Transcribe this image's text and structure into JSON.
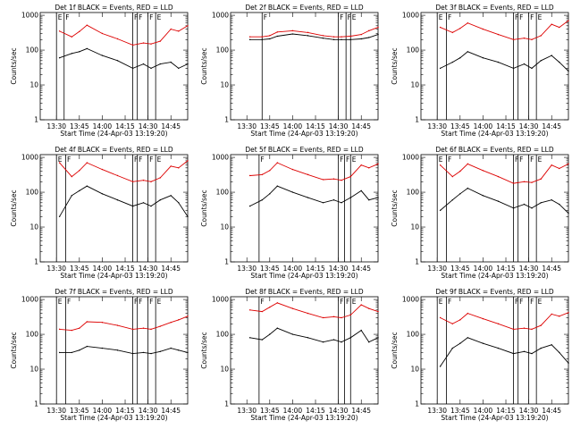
{
  "colors": {
    "events": "#000000",
    "lld": "#dd0000",
    "axis": "#000000",
    "background": "#ffffff"
  },
  "shared": {
    "xlabel": "Start Time (24-Apr-03 13:19:20)",
    "ylabel": "Counts/sec",
    "y_scale": "log",
    "ylim": [
      1,
      1200
    ],
    "xlim": [
      "13:19:20",
      "14:56:00"
    ],
    "x_ticks": [
      "13:30",
      "13:45",
      "14:00",
      "14:15",
      "14:30",
      "14:45"
    ],
    "y_ticks": [
      "1",
      "10",
      "100",
      "1000"
    ],
    "flag_labels": [
      "E",
      "F"
    ]
  },
  "chart_data": [
    {
      "type": "line",
      "title": "Det 1f BLACK = Events, RED = LLD",
      "xlabel": "Start Time (24-Apr-03 13:19:20)",
      "ylabel": "Counts/sec",
      "y_scale": "log",
      "ylim": [
        1,
        1200
      ],
      "x": [
        "13:32",
        "13:40",
        "13:45",
        "13:50",
        "14:00",
        "14:10",
        "14:20",
        "14:27",
        "14:32",
        "14:38",
        "14:45",
        "14:50",
        "14:56"
      ],
      "series": [
        {
          "name": "RED = LLD",
          "values": [
            350,
            240,
            340,
            520,
            300,
            210,
            140,
            160,
            150,
            180,
            400,
            350,
            500
          ]
        },
        {
          "name": "BLACK = Events",
          "values": [
            60,
            80,
            90,
            110,
            70,
            50,
            30,
            40,
            30,
            40,
            45,
            30,
            40
          ]
        }
      ],
      "flags": [
        {
          "time": "13:30",
          "label": "E"
        },
        {
          "time": "13:35",
          "label": "F"
        },
        {
          "time": "14:20",
          "label": "F"
        },
        {
          "time": "14:23",
          "label": "F"
        },
        {
          "time": "14:30",
          "label": "F"
        },
        {
          "time": "14:35",
          "label": "E"
        }
      ]
    },
    {
      "type": "line",
      "title": "Det 2f BLACK = Events, RED = LLD",
      "xlabel": "Start Time (24-Apr-03 13:19:20)",
      "ylabel": "Counts/sec",
      "y_scale": "log",
      "ylim": [
        1,
        1200
      ],
      "x": [
        "13:32",
        "13:40",
        "13:45",
        "13:50",
        "14:00",
        "14:10",
        "14:20",
        "14:27",
        "14:32",
        "14:38",
        "14:45",
        "14:50",
        "14:56"
      ],
      "series": [
        {
          "name": "RED = LLD",
          "values": [
            240,
            240,
            260,
            330,
            360,
            320,
            260,
            240,
            240,
            250,
            280,
            360,
            450
          ]
        },
        {
          "name": "BLACK = Events",
          "values": [
            200,
            200,
            210,
            250,
            290,
            260,
            220,
            200,
            200,
            200,
            210,
            230,
            280
          ]
        }
      ],
      "flags": [
        {
          "time": "13:40",
          "label": "F"
        },
        {
          "time": "14:30",
          "label": "F"
        },
        {
          "time": "14:35",
          "label": "F"
        },
        {
          "time": "14:38",
          "label": "E"
        }
      ]
    },
    {
      "type": "line",
      "title": "Det 3f BLACK = Events, RED = LLD",
      "xlabel": "Start Time (24-Apr-03 13:19:20)",
      "ylabel": "Counts/sec",
      "y_scale": "log",
      "ylim": [
        1,
        1200
      ],
      "x": [
        "13:32",
        "13:40",
        "13:45",
        "13:50",
        "14:00",
        "14:10",
        "14:20",
        "14:27",
        "14:32",
        "14:38",
        "14:45",
        "14:50",
        "14:56"
      ],
      "series": [
        {
          "name": "RED = LLD",
          "values": [
            450,
            320,
            420,
            600,
            400,
            280,
            200,
            220,
            200,
            260,
            550,
            450,
            700
          ]
        },
        {
          "name": "BLACK = Events",
          "values": [
            30,
            45,
            60,
            90,
            60,
            45,
            30,
            40,
            30,
            50,
            70,
            45,
            25
          ]
        }
      ],
      "flags": [
        {
          "time": "13:30",
          "label": "E"
        },
        {
          "time": "13:36",
          "label": "F"
        },
        {
          "time": "14:20",
          "label": "F"
        },
        {
          "time": "14:23",
          "label": "F"
        },
        {
          "time": "14:30",
          "label": "F"
        },
        {
          "time": "14:35",
          "label": "E"
        }
      ]
    },
    {
      "type": "line",
      "title": "Det 4f BLACK = Events, RED = LLD",
      "xlabel": "Start Time (24-Apr-03 13:19:20)",
      "ylabel": "Counts/sec",
      "y_scale": "log",
      "ylim": [
        1,
        1200
      ],
      "x": [
        "13:32",
        "13:40",
        "13:45",
        "13:50",
        "14:00",
        "14:10",
        "14:20",
        "14:27",
        "14:32",
        "14:38",
        "14:45",
        "14:50",
        "14:56"
      ],
      "series": [
        {
          "name": "RED = LLD",
          "values": [
            700,
            280,
            420,
            700,
            450,
            300,
            200,
            220,
            200,
            260,
            560,
            500,
            800
          ]
        },
        {
          "name": "BLACK = Events",
          "values": [
            20,
            80,
            110,
            150,
            90,
            60,
            40,
            50,
            40,
            60,
            80,
            50,
            20
          ]
        }
      ],
      "flags": [
        {
          "time": "13:30",
          "label": "E"
        },
        {
          "time": "13:36",
          "label": "F"
        },
        {
          "time": "14:20",
          "label": "F"
        },
        {
          "time": "14:23",
          "label": "F"
        },
        {
          "time": "14:30",
          "label": "F"
        },
        {
          "time": "14:35",
          "label": "E"
        }
      ]
    },
    {
      "type": "line",
      "title": "Det 5f BLACK = Events, RED = LLD",
      "xlabel": "Start Time (24-Apr-03 13:19:20)",
      "ylabel": "Counts/sec",
      "y_scale": "log",
      "ylim": [
        1,
        1200
      ],
      "x": [
        "13:32",
        "13:40",
        "13:45",
        "13:50",
        "14:00",
        "14:10",
        "14:20",
        "14:27",
        "14:32",
        "14:38",
        "14:45",
        "14:50",
        "14:56"
      ],
      "series": [
        {
          "name": "RED = LLD",
          "values": [
            300,
            320,
            420,
            700,
            450,
            320,
            230,
            240,
            220,
            280,
            600,
            500,
            650
          ]
        },
        {
          "name": "BLACK = Events",
          "values": [
            40,
            60,
            90,
            150,
            100,
            70,
            50,
            60,
            50,
            70,
            110,
            60,
            70
          ]
        }
      ],
      "flags": [
        {
          "time": "13:38",
          "label": "F"
        },
        {
          "time": "14:30",
          "label": "F"
        },
        {
          "time": "14:34",
          "label": "F"
        },
        {
          "time": "14:38",
          "label": "E"
        }
      ]
    },
    {
      "type": "line",
      "title": "Det 6f BLACK = Events, RED = LLD",
      "xlabel": "Start Time (24-Apr-03 13:19:20)",
      "ylabel": "Counts/sec",
      "y_scale": "log",
      "ylim": [
        1,
        1200
      ],
      "x": [
        "13:32",
        "13:40",
        "13:45",
        "13:50",
        "14:00",
        "14:10",
        "14:20",
        "14:27",
        "14:32",
        "14:38",
        "14:45",
        "14:50",
        "14:56"
      ],
      "series": [
        {
          "name": "RED = LLD",
          "values": [
            600,
            280,
            400,
            650,
            420,
            280,
            180,
            200,
            190,
            240,
            600,
            480,
            650
          ]
        },
        {
          "name": "BLACK = Events",
          "values": [
            30,
            60,
            90,
            130,
            80,
            55,
            35,
            45,
            35,
            50,
            60,
            45,
            25
          ]
        }
      ],
      "flags": [
        {
          "time": "13:30",
          "label": "E"
        },
        {
          "time": "13:36",
          "label": "F"
        },
        {
          "time": "14:20",
          "label": "F"
        },
        {
          "time": "14:23",
          "label": "F"
        },
        {
          "time": "14:30",
          "label": "F"
        },
        {
          "time": "14:35",
          "label": "E"
        }
      ]
    },
    {
      "type": "line",
      "title": "Det 7f BLACK = Events, RED = LLD",
      "xlabel": "Start Time (24-Apr-03 13:19:20)",
      "ylabel": "Counts/sec",
      "y_scale": "log",
      "ylim": [
        1,
        1200
      ],
      "x": [
        "13:32",
        "13:40",
        "13:45",
        "13:50",
        "14:00",
        "14:10",
        "14:20",
        "14:27",
        "14:32",
        "14:38",
        "14:45",
        "14:50",
        "14:56"
      ],
      "series": [
        {
          "name": "RED = LLD",
          "values": [
            140,
            130,
            150,
            230,
            220,
            180,
            140,
            150,
            140,
            170,
            220,
            260,
            330
          ]
        },
        {
          "name": "BLACK = Events",
          "values": [
            30,
            30,
            35,
            45,
            40,
            35,
            28,
            30,
            28,
            32,
            40,
            35,
            30
          ]
        }
      ],
      "flags": [
        {
          "time": "13:30",
          "label": "E"
        },
        {
          "time": "13:36",
          "label": "F"
        },
        {
          "time": "14:20",
          "label": "F"
        },
        {
          "time": "14:23",
          "label": "F"
        },
        {
          "time": "14:30",
          "label": "F"
        },
        {
          "time": "14:35",
          "label": "E"
        }
      ]
    },
    {
      "type": "line",
      "title": "Det 8f BLACK = Events, RED = LLD",
      "xlabel": "Start Time (24-Apr-03 13:19:20)",
      "ylabel": "Counts/sec",
      "y_scale": "log",
      "ylim": [
        1,
        1200
      ],
      "x": [
        "13:32",
        "13:40",
        "13:45",
        "13:50",
        "14:00",
        "14:10",
        "14:20",
        "14:27",
        "14:32",
        "14:38",
        "14:45",
        "14:50",
        "14:56"
      ],
      "series": [
        {
          "name": "RED = LLD",
          "values": [
            500,
            450,
            600,
            800,
            550,
            400,
            300,
            320,
            300,
            360,
            700,
            550,
            450
          ]
        },
        {
          "name": "BLACK = Events",
          "values": [
            80,
            70,
            100,
            150,
            100,
            80,
            60,
            70,
            60,
            80,
            130,
            60,
            80
          ]
        }
      ],
      "flags": [
        {
          "time": "13:38",
          "label": "F"
        },
        {
          "time": "14:30",
          "label": "F"
        },
        {
          "time": "14:34",
          "label": "F"
        },
        {
          "time": "14:38",
          "label": "E"
        }
      ]
    },
    {
      "type": "line",
      "title": "Det 9f BLACK = Events, RED = LLD",
      "xlabel": "Start Time (24-Apr-03 13:19:20)",
      "ylabel": "Counts/sec",
      "y_scale": "log",
      "ylim": [
        1,
        1200
      ],
      "x": [
        "13:32",
        "13:40",
        "13:45",
        "13:50",
        "14:00",
        "14:10",
        "14:20",
        "14:27",
        "14:32",
        "14:38",
        "14:45",
        "14:50",
        "14:56"
      ],
      "series": [
        {
          "name": "RED = LLD",
          "values": [
            300,
            200,
            260,
            400,
            280,
            200,
            140,
            150,
            140,
            180,
            380,
            330,
            420
          ]
        },
        {
          "name": "BLACK = Events",
          "values": [
            12,
            40,
            55,
            80,
            55,
            40,
            28,
            32,
            28,
            40,
            50,
            30,
            15
          ]
        }
      ],
      "flags": [
        {
          "time": "13:30",
          "label": "E"
        },
        {
          "time": "13:36",
          "label": "F"
        },
        {
          "time": "14:20",
          "label": "F"
        },
        {
          "time": "14:23",
          "label": "F"
        },
        {
          "time": "14:30",
          "label": "F"
        },
        {
          "time": "14:35",
          "label": "E"
        }
      ]
    }
  ]
}
